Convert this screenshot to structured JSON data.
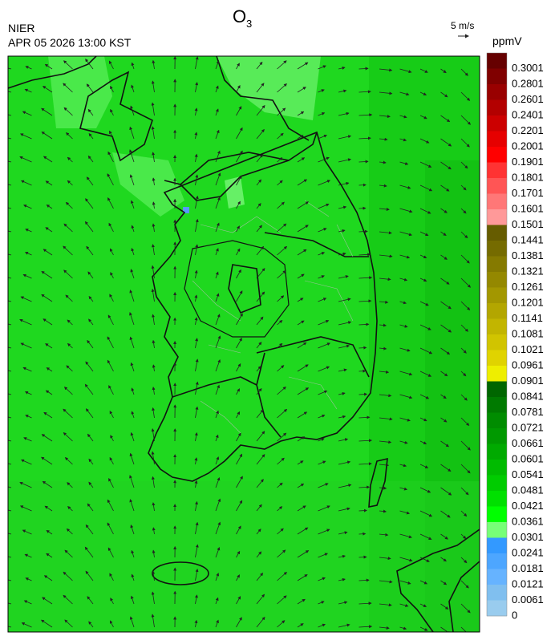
{
  "header": {
    "title": "O",
    "title_subscript": "3",
    "agency": "NIER",
    "datetime": "APR 05 2026 13:00 KST",
    "vector_scale": "5 m/s",
    "unit": "ppmV"
  },
  "colorbar": {
    "levels": [
      0.3001,
      0.2801,
      0.2601,
      0.2401,
      0.2201,
      0.2001,
      0.1901,
      0.1801,
      0.1701,
      0.1601,
      0.1501,
      0.1441,
      0.1381,
      0.1321,
      0.1261,
      0.1201,
      0.1141,
      0.1081,
      0.1021,
      0.0961,
      0.0901,
      0.0841,
      0.0781,
      0.0721,
      0.0661,
      0.0601,
      0.0541,
      0.0481,
      0.0421,
      0.0361,
      0.0301,
      0.0241,
      0.0181,
      0.0121,
      0.0061,
      0
    ],
    "colors": [
      "#660000",
      "#800000",
      "#990000",
      "#b30000",
      "#cc0000",
      "#e60000",
      "#ff0000",
      "#ff3333",
      "#ff5555",
      "#ff7777",
      "#ff9999",
      "#665c00",
      "#756b00",
      "#857a00",
      "#948800",
      "#a39700",
      "#b3a600",
      "#c2b500",
      "#d1c400",
      "#e0d300",
      "#eeee00",
      "#006600",
      "#007a00",
      "#008c00",
      "#009900",
      "#00aa00",
      "#00bb00",
      "#00cc00",
      "#00e000",
      "#00ff00",
      "#77ff77",
      "#3399ff",
      "#4da6ff",
      "#66b3ff",
      "#80bfef",
      "#99ccee"
    ]
  }
}
